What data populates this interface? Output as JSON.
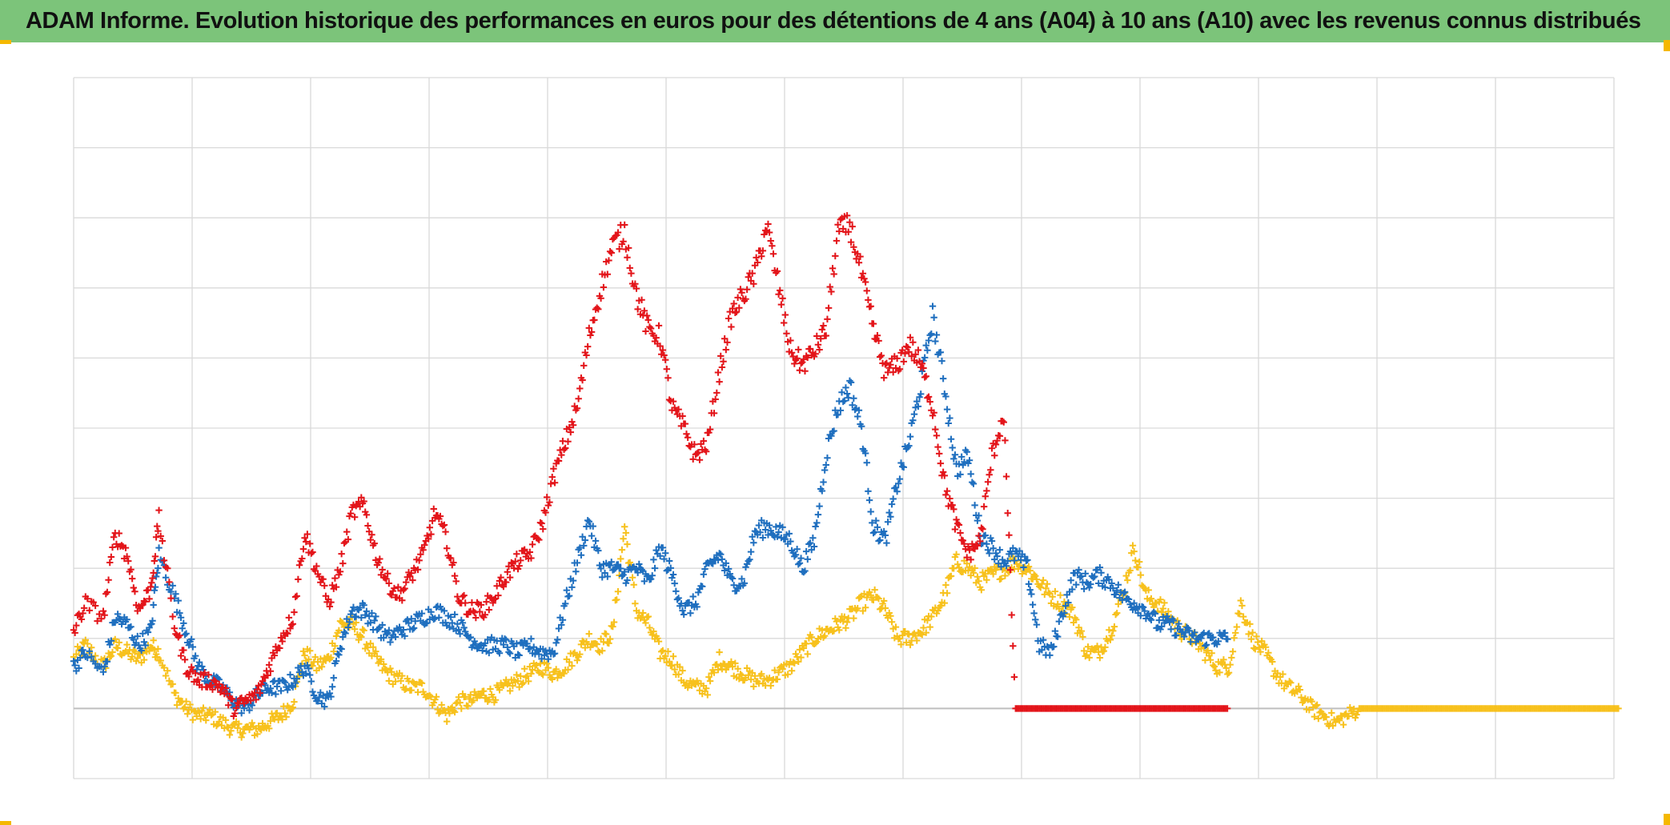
{
  "title": "ADAM Informe. Evolution historique des performances en euros pour des détentions de 4 ans (A04) à 10 ans (A10) avec les revenus connus distribués",
  "colors": {
    "title_bg": "#7cc47a",
    "corner_accent": "#f5b800",
    "grid": "#d9d9d9",
    "zero_line": "#bfbfbf"
  },
  "chart_data": {
    "type": "scatter",
    "marker": "cross",
    "title": "ADAM Informe. Evolution historique des performances en euros pour des détentions de 4 ans (A04) à 10 ans (A10) avec les revenus connus distribués",
    "xlabel": "",
    "ylabel": "",
    "x_tick_labels": [],
    "y_tick_labels": [],
    "xlim": [
      0,
      13
    ],
    "ylim": [
      -1,
      9
    ],
    "grid": true,
    "x_gridlines": 13,
    "y_gridlines": 10,
    "legend": "none",
    "series": [
      {
        "name": "red",
        "color": "#e3151a",
        "x": [
          0.0,
          0.1,
          0.25,
          0.35,
          0.45,
          0.55,
          0.65,
          0.72,
          0.85,
          0.95,
          1.05,
          1.15,
          1.25,
          1.35,
          1.45,
          1.55,
          1.65,
          1.75,
          1.85,
          1.95,
          2.05,
          2.15,
          2.25,
          2.35,
          2.45,
          2.55,
          2.65,
          2.75,
          2.85,
          2.95,
          3.05,
          3.15,
          3.25,
          3.35,
          3.45,
          3.55,
          3.65,
          3.75,
          3.85,
          3.95,
          4.05,
          4.15,
          4.25,
          4.35,
          4.45,
          4.55,
          4.65,
          4.75,
          4.85,
          4.95,
          5.05,
          5.15,
          5.25,
          5.35,
          5.45,
          5.55,
          5.65,
          5.75,
          5.85,
          5.95,
          6.05,
          6.15,
          6.25,
          6.35,
          6.45,
          6.55,
          6.65,
          6.75,
          6.85,
          6.95,
          7.05,
          7.15,
          7.25,
          7.35,
          7.45,
          7.55,
          7.65,
          7.75,
          7.85,
          7.95,
          8.05,
          8.15,
          8.25,
          8.35,
          8.45,
          8.55,
          8.65,
          8.75,
          8.85,
          8.95,
          9.05,
          9.15,
          9.25,
          9.35,
          9.45,
          9.55,
          9.65
        ],
        "y": [
          1.1,
          1.5,
          1.3,
          2.5,
          2.2,
          1.4,
          1.7,
          2.7,
          1.2,
          0.6,
          0.4,
          0.4,
          0.3,
          0.0,
          0.1,
          0.2,
          0.6,
          1.0,
          1.3,
          2.5,
          2.0,
          1.5,
          2.0,
          2.8,
          2.9,
          2.2,
          1.8,
          1.6,
          1.9,
          2.2,
          2.8,
          2.4,
          1.6,
          1.4,
          1.4,
          1.6,
          1.9,
          2.1,
          2.2,
          2.6,
          3.3,
          3.8,
          4.3,
          5.3,
          6.0,
          6.6,
          6.8,
          5.9,
          5.4,
          5.3,
          4.3,
          4.0,
          3.6,
          3.8,
          4.8,
          5.6,
          5.9,
          6.2,
          6.9,
          6.0,
          5.1,
          4.9,
          5.1,
          5.4,
          6.8,
          6.9,
          6.2,
          5.4,
          4.8,
          4.9,
          5.2,
          4.9,
          4.3,
          3.2,
          2.6,
          2.2,
          2.4,
          3.6,
          4.2,
          0.0,
          0.0,
          0.0,
          0.0,
          0.0,
          0.0,
          0.0,
          0.0,
          0.0,
          0.0,
          0.0,
          0.0,
          0.0,
          0.0,
          0.0,
          0.0,
          0.0,
          0.0
        ]
      },
      {
        "name": "blue",
        "color": "#1f6fbf",
        "x": [
          0.0,
          0.1,
          0.25,
          0.35,
          0.45,
          0.55,
          0.65,
          0.72,
          0.85,
          0.95,
          1.05,
          1.15,
          1.25,
          1.35,
          1.45,
          1.55,
          1.65,
          1.75,
          1.85,
          1.95,
          2.05,
          2.15,
          2.25,
          2.35,
          2.45,
          2.55,
          2.65,
          2.75,
          2.85,
          2.95,
          3.05,
          3.15,
          3.25,
          3.35,
          3.45,
          3.55,
          3.65,
          3.75,
          3.85,
          3.95,
          4.05,
          4.15,
          4.25,
          4.35,
          4.45,
          4.55,
          4.65,
          4.75,
          4.85,
          4.95,
          5.05,
          5.15,
          5.25,
          5.35,
          5.45,
          5.55,
          5.65,
          5.75,
          5.85,
          5.95,
          6.05,
          6.15,
          6.25,
          6.35,
          6.45,
          6.55,
          6.65,
          6.75,
          6.85,
          6.95,
          7.05,
          7.15,
          7.25,
          7.35,
          7.45,
          7.55,
          7.65,
          7.75,
          7.85,
          7.95,
          8.05,
          8.15,
          8.25,
          8.35,
          8.45,
          8.55,
          8.65,
          8.75,
          8.85,
          8.95,
          9.05,
          9.15,
          9.25,
          9.35,
          9.45,
          9.55,
          9.65
        ],
        "y": [
          0.6,
          0.8,
          0.5,
          1.3,
          1.2,
          0.9,
          1.1,
          2.2,
          1.6,
          1.1,
          0.6,
          0.4,
          0.3,
          0.1,
          0.0,
          0.2,
          0.3,
          0.3,
          0.4,
          0.6,
          0.2,
          0.1,
          0.9,
          1.4,
          1.4,
          1.2,
          1.0,
          1.1,
          1.2,
          1.3,
          1.4,
          1.3,
          1.2,
          1.0,
          0.9,
          0.9,
          0.9,
          0.8,
          0.9,
          0.8,
          0.8,
          1.5,
          2.1,
          2.7,
          2.0,
          2.0,
          1.9,
          2.0,
          1.8,
          2.3,
          1.9,
          1.4,
          1.5,
          2.0,
          2.2,
          1.8,
          1.8,
          2.5,
          2.6,
          2.5,
          2.4,
          2.0,
          2.4,
          3.6,
          4.3,
          4.6,
          4.0,
          2.6,
          2.4,
          3.2,
          3.8,
          4.6,
          5.6,
          4.6,
          3.4,
          3.6,
          2.5,
          2.3,
          2.1,
          2.2,
          2.0,
          0.9,
          0.8,
          1.4,
          1.9,
          1.8,
          1.9,
          1.8,
          1.6,
          1.5,
          1.4,
          1.2,
          1.2,
          1.1,
          1.0,
          1.0,
          1.0
        ]
      },
      {
        "name": "yellow",
        "color": "#f7c11d",
        "x": [
          0.0,
          0.1,
          0.25,
          0.35,
          0.45,
          0.55,
          0.65,
          0.72,
          0.85,
          0.95,
          1.05,
          1.15,
          1.25,
          1.35,
          1.45,
          1.55,
          1.65,
          1.75,
          1.85,
          1.95,
          2.05,
          2.15,
          2.25,
          2.35,
          2.45,
          2.55,
          2.65,
          2.75,
          2.85,
          2.95,
          3.05,
          3.15,
          3.25,
          3.35,
          3.45,
          3.55,
          3.65,
          3.75,
          3.85,
          3.95,
          4.05,
          4.15,
          4.25,
          4.35,
          4.45,
          4.55,
          4.65,
          4.75,
          4.85,
          4.95,
          5.05,
          5.15,
          5.25,
          5.35,
          5.45,
          5.55,
          5.65,
          5.75,
          5.85,
          5.95,
          6.05,
          6.15,
          6.25,
          6.35,
          6.45,
          6.55,
          6.65,
          6.75,
          6.85,
          6.95,
          7.05,
          7.15,
          7.25,
          7.35,
          7.45,
          7.55,
          7.65,
          7.75,
          7.85,
          7.95,
          8.05,
          8.15,
          8.25,
          8.35,
          8.45,
          8.55,
          8.65,
          8.75,
          8.85,
          8.95,
          9.05,
          9.15,
          9.25,
          9.35,
          9.45,
          9.55,
          9.65,
          9.75,
          9.85,
          9.95,
          10.05,
          10.15,
          10.25,
          10.35,
          10.45,
          10.55,
          10.65,
          10.75,
          10.85,
          10.95,
          11.05,
          11.15,
          11.25,
          11.35,
          11.45,
          11.55,
          11.65,
          11.75,
          11.85,
          11.95,
          12.05,
          12.15,
          12.25,
          12.35,
          12.45,
          12.55,
          12.65,
          12.75,
          12.85,
          12.95
        ],
        "y": [
          0.7,
          0.9,
          0.6,
          0.9,
          0.8,
          0.7,
          0.9,
          0.8,
          0.2,
          0.0,
          -0.1,
          -0.1,
          -0.2,
          -0.3,
          -0.3,
          -0.3,
          -0.2,
          -0.1,
          0.1,
          0.8,
          0.6,
          0.7,
          1.2,
          1.2,
          1.0,
          0.7,
          0.5,
          0.4,
          0.3,
          0.3,
          0.1,
          -0.1,
          0.1,
          0.1,
          0.2,
          0.2,
          0.3,
          0.4,
          0.5,
          0.6,
          0.5,
          0.6,
          0.8,
          1.0,
          0.9,
          1.1,
          2.6,
          1.4,
          1.2,
          0.8,
          0.7,
          0.4,
          0.3,
          0.3,
          0.7,
          0.6,
          0.5,
          0.4,
          0.4,
          0.5,
          0.6,
          0.8,
          1.0,
          1.1,
          1.2,
          1.3,
          1.5,
          1.6,
          1.4,
          1.0,
          1.0,
          1.1,
          1.3,
          1.6,
          2.1,
          2.0,
          1.8,
          1.9,
          2.0,
          2.1,
          2.0,
          1.8,
          1.6,
          1.5,
          1.3,
          0.8,
          0.8,
          1.1,
          1.6,
          2.3,
          1.6,
          1.5,
          1.3,
          1.1,
          1.0,
          0.8,
          0.6,
          0.6,
          1.5,
          1.0,
          0.8,
          0.5,
          0.3,
          0.2,
          0.0,
          -0.1,
          -0.2,
          -0.1,
          0.0,
          0.0,
          0.0,
          0.0,
          0.0,
          0.0,
          0.0,
          0.0,
          0.0,
          0.0,
          0.0,
          0.0,
          0.0,
          0.0,
          0.0,
          0.0,
          0.0,
          0.0,
          0.0,
          0.0,
          0.0,
          0.0
        ]
      }
    ]
  }
}
